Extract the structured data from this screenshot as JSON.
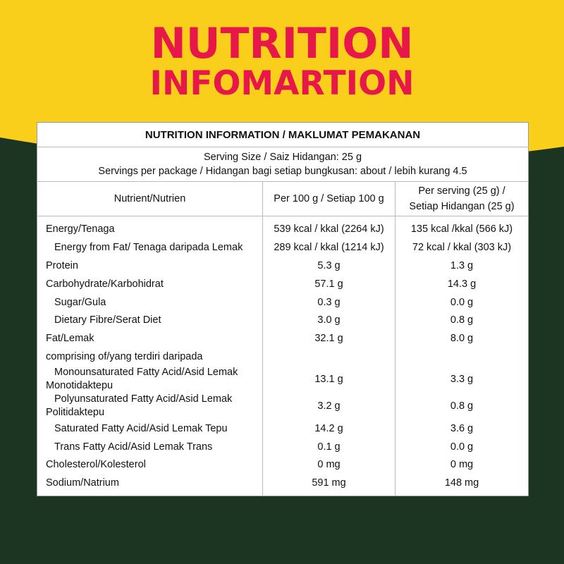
{
  "header": {
    "title": [
      "NUTRITION",
      "INFOMARTION"
    ]
  },
  "table": {
    "title": "NUTRITION INFORMATION / MAKLUMAT PEMAKANAN",
    "serving": [
      "Serving Size / Saiz Hidangan: 25 g",
      "Servings per package / Hidangan bagi setiap bungkusan: about / lebih kurang 4.5"
    ],
    "columns": [
      "Nutrient/Nutrien",
      "Per 100 g / Setiap 100 g",
      [
        "Per serving (25 g) /",
        "Setiap Hidangan (25 g)"
      ]
    ],
    "rows": [
      [
        "Energy/Tenaga",
        "539 kcal / kkal (2264 kJ)",
        "135 kcal /kkal (566 kJ)"
      ],
      [
        "Energy from Fat/ Tenaga daripada Lemak",
        "289 kcal / kkal (1214 kJ)",
        "72 kcal / kkal (303 kJ)"
      ],
      [
        "Protein",
        "5.3 g",
        "1.3 g"
      ],
      [
        "Carbohydrate/Karbohidrat",
        "57.1 g",
        "14.3 g"
      ],
      [
        "Sugar/Gula",
        "0.3 g",
        "0.0 g"
      ],
      [
        "Dietary Fibre/Serat Diet",
        "3.0 g",
        "0.8 g"
      ],
      [
        "Fat/Lemak",
        "32.1 g",
        "8.0 g"
      ],
      [
        "comprising of/yang terdiri daripada"
      ],
      [
        "Monounsaturated Fatty Acid/Asid Lemak Monotidaktepu",
        "13.1 g",
        "3.3 g"
      ],
      [
        "Polyunsaturated Fatty Acid/Asid Lemak Politidaktepu",
        "3.2 g",
        "0.8 g"
      ],
      [
        "Saturated Fatty Acid/Asid Lemak Tepu",
        "14.2 g",
        "3.6 g"
      ],
      [
        "Trans Fatty Acid/Asid Lemak Trans",
        "0.1 g",
        "0.0 g"
      ],
      [
        "Cholesterol/Kolesterol",
        "0 mg",
        "0 mg"
      ],
      [
        "Sodium/Natrium",
        "591 mg",
        "148 mg"
      ]
    ]
  }
}
